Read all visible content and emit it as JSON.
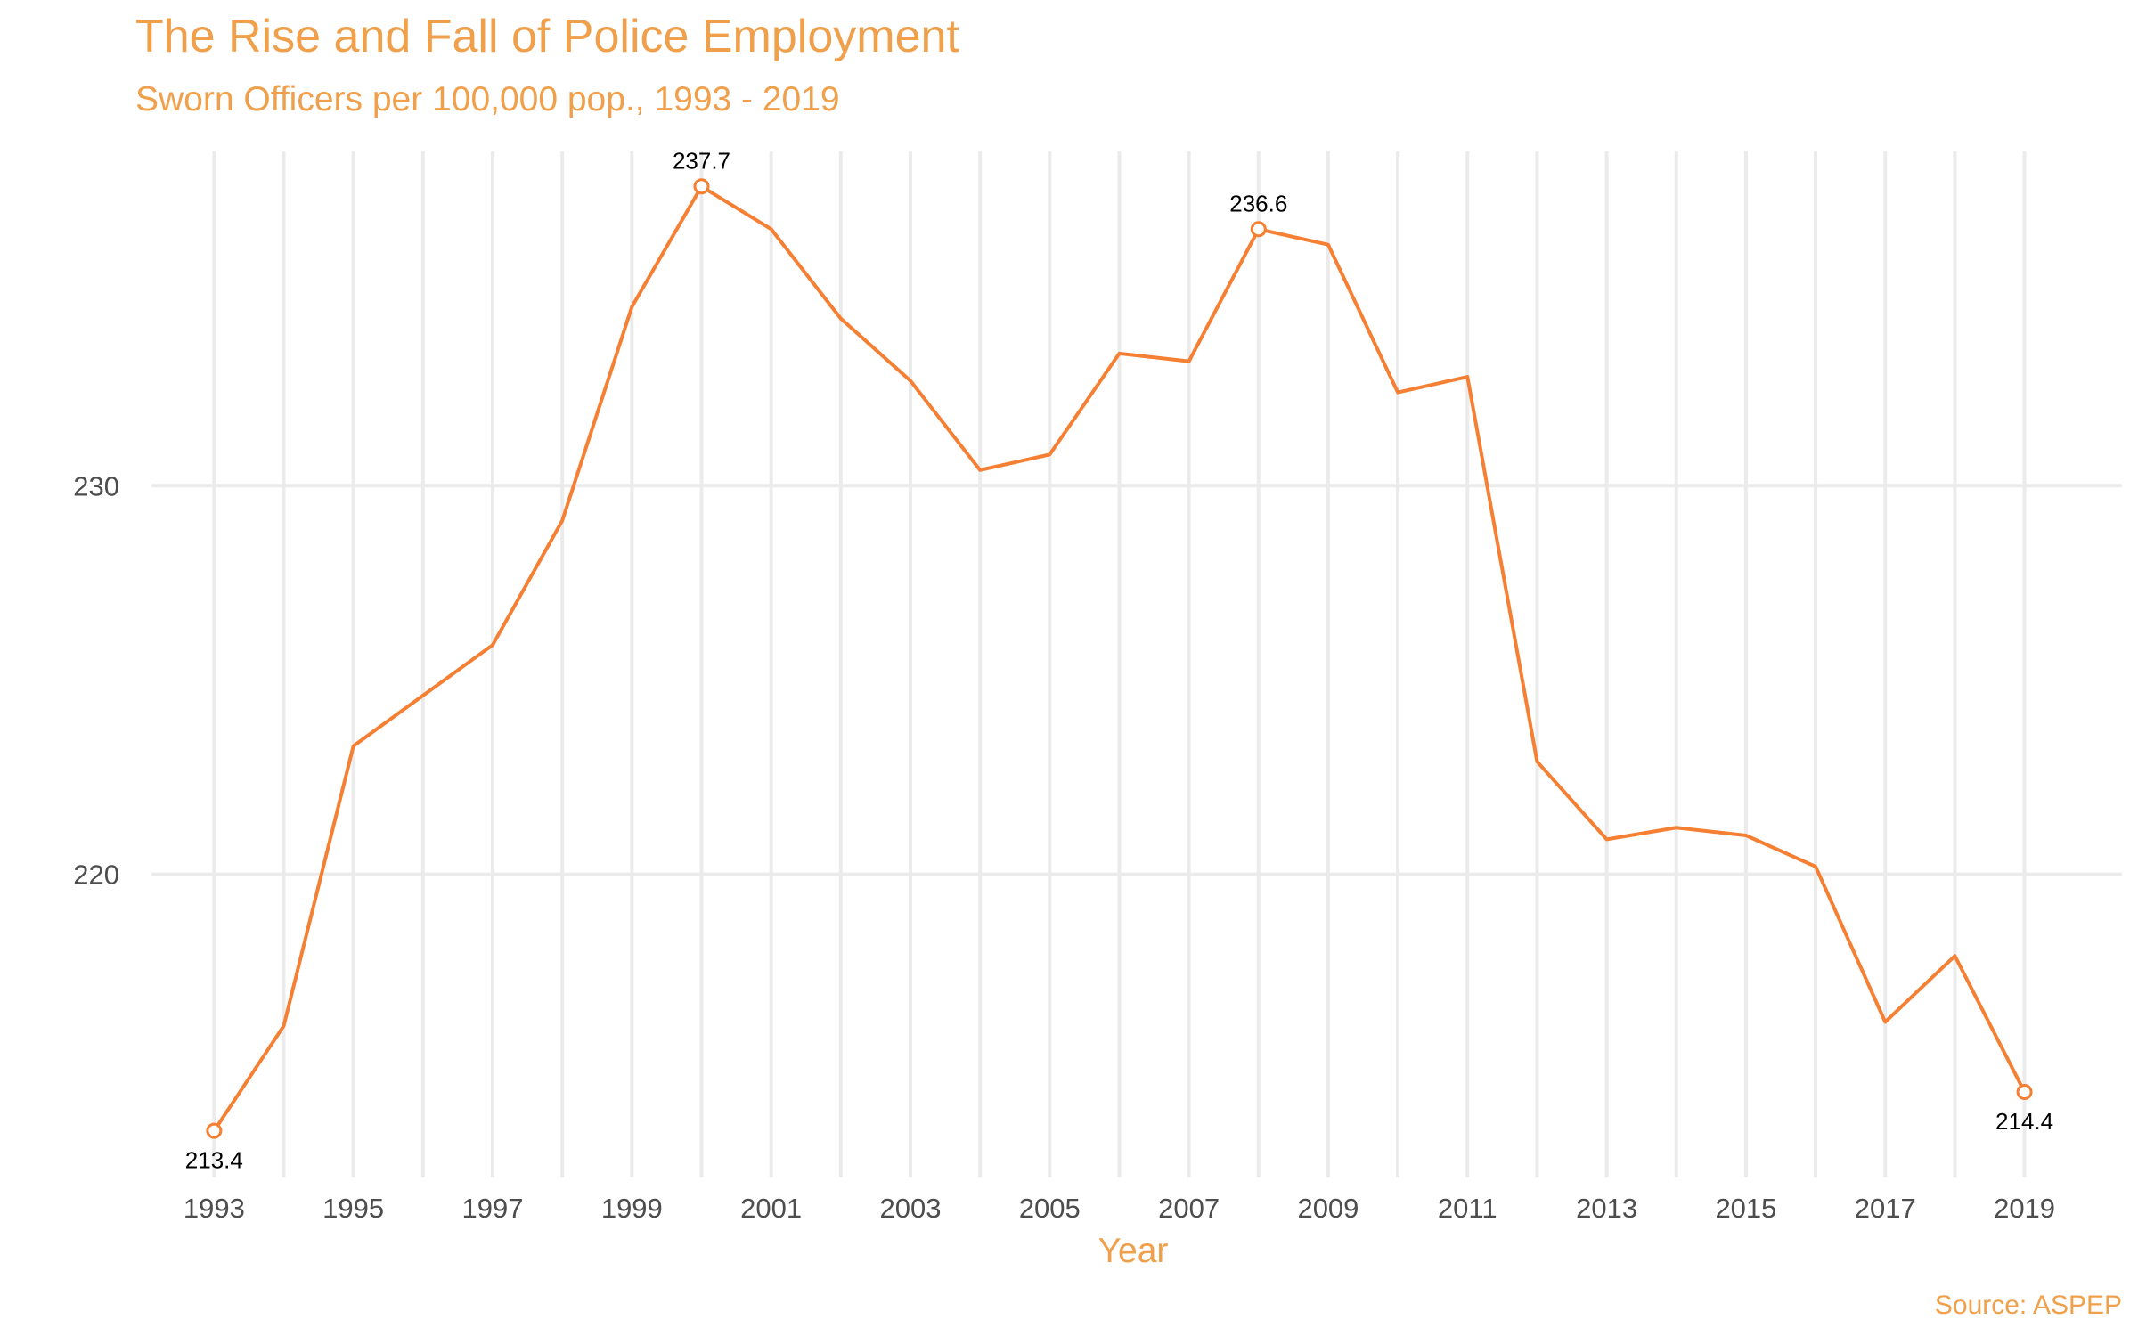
{
  "chart_data": {
    "type": "line",
    "title": "The Rise and Fall of Police Employment",
    "subtitle": "Sworn Officers per 100,000 pop., 1993 - 2019",
    "xlabel": "Year",
    "ylabel": "",
    "caption": "Source: ASPEP",
    "x": [
      1993,
      1994,
      1995,
      1996,
      1997,
      1998,
      1999,
      2000,
      2001,
      2002,
      2003,
      2004,
      2005,
      2006,
      2007,
      2008,
      2009,
      2010,
      2011,
      2012,
      2013,
      2014,
      2015,
      2016,
      2017,
      2018,
      2019
    ],
    "series": [
      {
        "values": [
          213.4,
          216.1,
          223.3,
          224.6,
          225.9,
          229.1,
          234.6,
          237.7,
          236.6,
          234.3,
          232.7,
          230.4,
          230.8,
          233.4,
          233.2,
          236.6,
          236.2,
          232.4,
          232.8,
          222.9,
          220.9,
          221.2,
          221.0,
          220.2,
          216.2,
          217.9,
          214.4
        ],
        "color": "#f57f33"
      }
    ],
    "labeled_points": [
      {
        "x": 1993,
        "y": 213.4,
        "label": "213.4",
        "position": "below"
      },
      {
        "x": 2000,
        "y": 237.7,
        "label": "237.7",
        "position": "above"
      },
      {
        "x": 2008,
        "y": 236.6,
        "label": "236.6",
        "position": "above"
      },
      {
        "x": 2019,
        "y": 214.4,
        "label": "214.4",
        "position": "below"
      }
    ],
    "xticks": [
      "1993",
      "1995",
      "1997",
      "1999",
      "2001",
      "2003",
      "2005",
      "2007",
      "2009",
      "2011",
      "2013",
      "2015",
      "2017",
      "2019"
    ],
    "yticks": [
      "220",
      "230"
    ],
    "xlim": [
      1992.1,
      2020.4
    ],
    "ylim": [
      212.2,
      238.6
    ],
    "grid": true,
    "colors": {
      "title": "#f0a04b",
      "line": "#f57f33",
      "grid": "#ebebeb",
      "tick_text": "#4d4d4d",
      "data_label": "#000000"
    }
  }
}
